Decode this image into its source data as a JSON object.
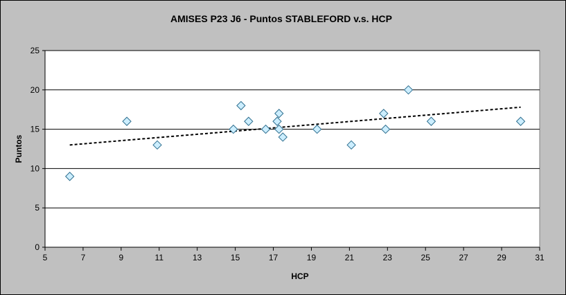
{
  "chart_data": {
    "type": "scatter",
    "title": "AMISES P23 J6 - Puntos STABLEFORD v.s. HCP",
    "xlabel": "HCP",
    "ylabel": "Puntos",
    "xlim": [
      5,
      31
    ],
    "ylim": [
      0,
      25
    ],
    "xticks": [
      "5",
      "7",
      "9",
      "11",
      "13",
      "15",
      "17",
      "19",
      "21",
      "23",
      "25",
      "27",
      "29",
      "31"
    ],
    "yticks": [
      "0",
      "5",
      "10",
      "15",
      "20",
      "25"
    ],
    "grid": "horizontal",
    "legend": "none",
    "marker": "diamond",
    "colors": {
      "plot_bg": "#ffffff",
      "frame_bg": "#c0c0c0",
      "marker_fill": "#cceeff",
      "marker_stroke": "#2f6f8f",
      "gridline": "#000000",
      "trendline": "#000000"
    },
    "series": [
      {
        "points": [
          [
            6.3,
            9
          ],
          [
            9.3,
            16
          ],
          [
            10.9,
            13
          ],
          [
            14.9,
            15
          ],
          [
            15.3,
            18
          ],
          [
            15.7,
            16
          ],
          [
            16.6,
            15
          ],
          [
            17.2,
            16
          ],
          [
            17.3,
            17
          ],
          [
            17.3,
            15
          ],
          [
            17.5,
            14
          ],
          [
            19.3,
            15
          ],
          [
            21.1,
            13
          ],
          [
            22.8,
            17
          ],
          [
            22.9,
            15
          ],
          [
            24.1,
            20
          ],
          [
            25.3,
            16
          ],
          [
            30.0,
            16
          ]
        ]
      }
    ],
    "trendline": {
      "type": "linear",
      "x": [
        6.3,
        30.0
      ],
      "y": [
        13.0,
        17.8
      ],
      "style": "dashed"
    }
  }
}
